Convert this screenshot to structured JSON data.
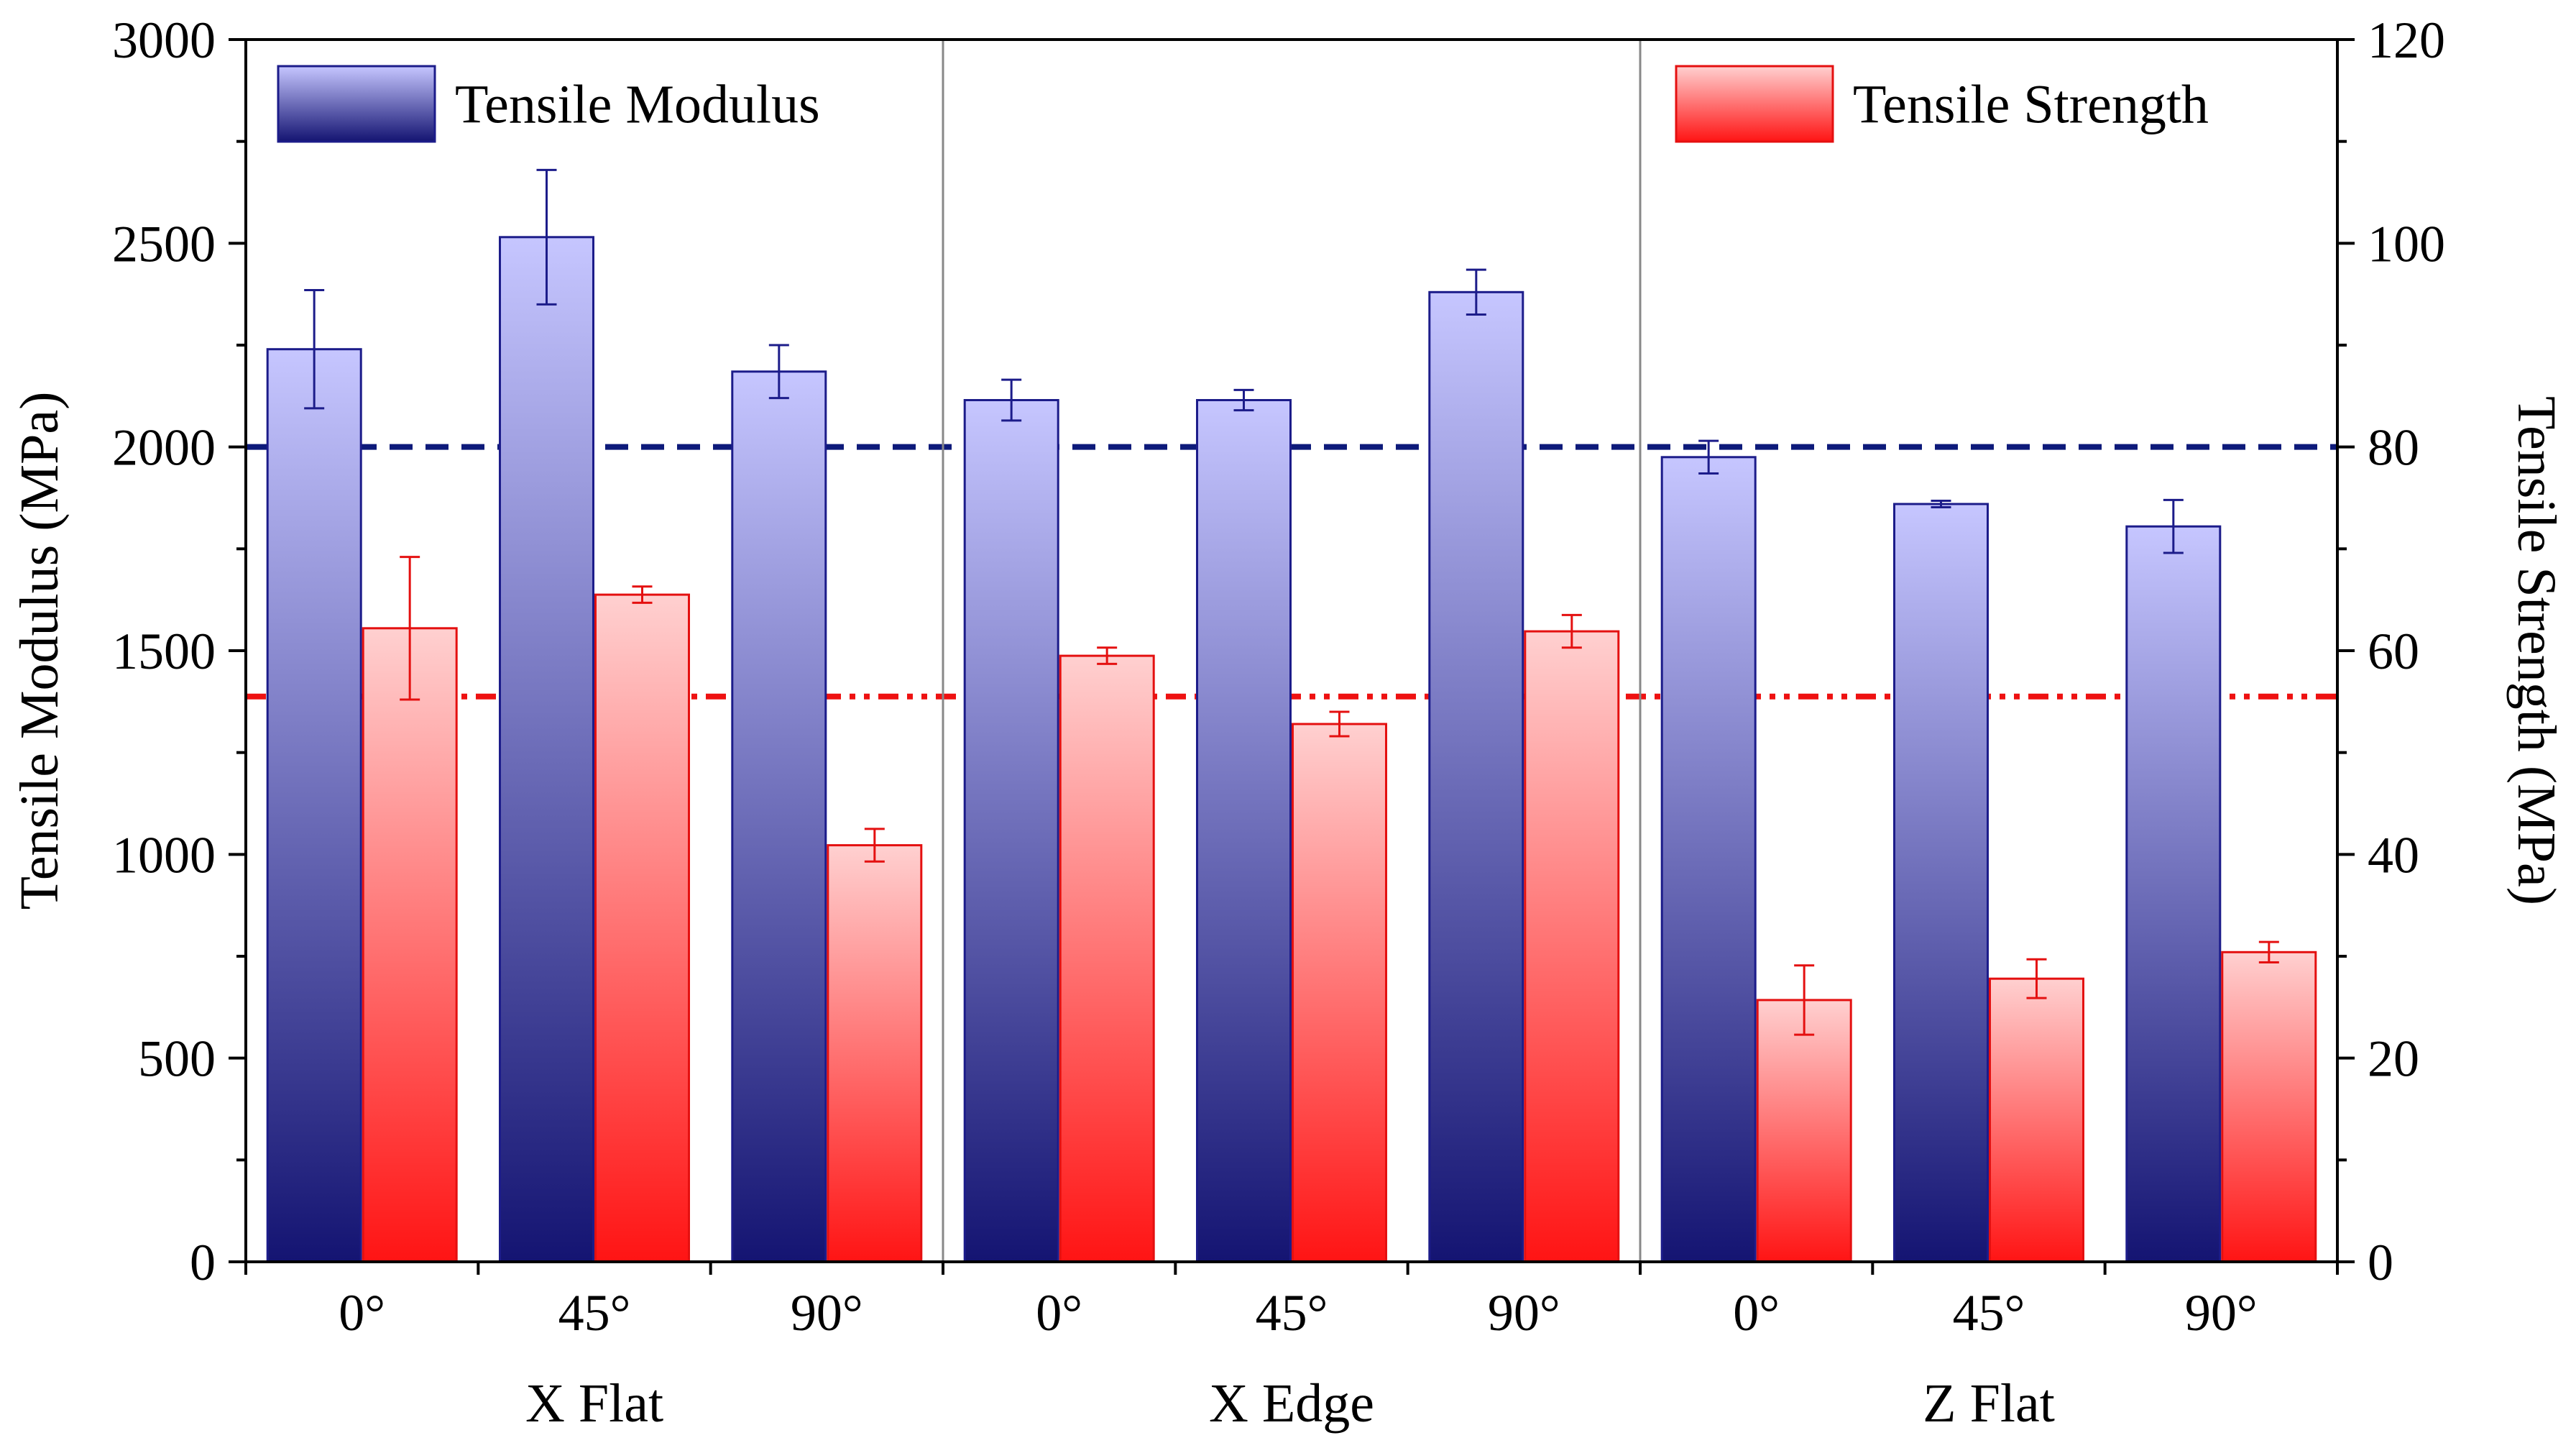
{
  "colors": {
    "modulus_dark": "#141472",
    "modulus_light": "#c6c6ff",
    "modulus_edge": "#1c1c8a",
    "modulus_line": "#0d1a7a",
    "strength_dark": "#ff1414",
    "strength_light": "#ffd0d0",
    "strength_edge": "#e41010",
    "strength_line": "#ee1111",
    "axis": "#000000",
    "divider": "#888888"
  },
  "chart_data": {
    "type": "bar",
    "title": "",
    "groups": [
      {
        "label": "X Flat",
        "categories": [
          "0°",
          "45°",
          "90°"
        ]
      },
      {
        "label": "X Edge",
        "categories": [
          "0°",
          "45°",
          "90°"
        ]
      },
      {
        "label": "Z Flat",
        "categories": [
          "0°",
          "45°",
          "90°"
        ]
      }
    ],
    "series": [
      {
        "name": "Tensile Modulus",
        "axis": "left",
        "values": [
          2240,
          2515,
          2185,
          2115,
          2115,
          2380,
          1975,
          1860,
          1805
        ],
        "errors": [
          145,
          165,
          65,
          50,
          25,
          55,
          40,
          8,
          65
        ],
        "reference_line": 2000
      },
      {
        "name": "Tensile Strength",
        "axis": "right",
        "values": [
          62.2,
          65.5,
          40.9,
          59.5,
          52.8,
          61.9,
          25.7,
          27.8,
          30.4
        ],
        "errors": [
          7.0,
          0.8,
          1.6,
          0.8,
          1.2,
          1.6,
          3.4,
          1.9,
          1.0
        ],
        "reference_line": 55.5
      }
    ],
    "y_left": {
      "label": "Tensile Modulus (MPa)",
      "lim": [
        0,
        3000
      ],
      "ticks": [
        0,
        500,
        1000,
        1500,
        2000,
        2500,
        3000
      ],
      "tick_labels": [
        "0",
        "500",
        "1000",
        "1500",
        "2000",
        "2500",
        "3000"
      ]
    },
    "y_right": {
      "label": "Tensile Strength (MPa)",
      "lim": [
        0,
        120
      ],
      "ticks": [
        0,
        20,
        40,
        60,
        80,
        100,
        120
      ],
      "tick_labels": [
        "0",
        "20",
        "40",
        "60",
        "80",
        "100",
        "120"
      ]
    },
    "legend": [
      {
        "series": "Tensile Modulus",
        "position": "top-left"
      },
      {
        "series": "Tensile Strength",
        "position": "top-right"
      }
    ],
    "grid": false
  }
}
